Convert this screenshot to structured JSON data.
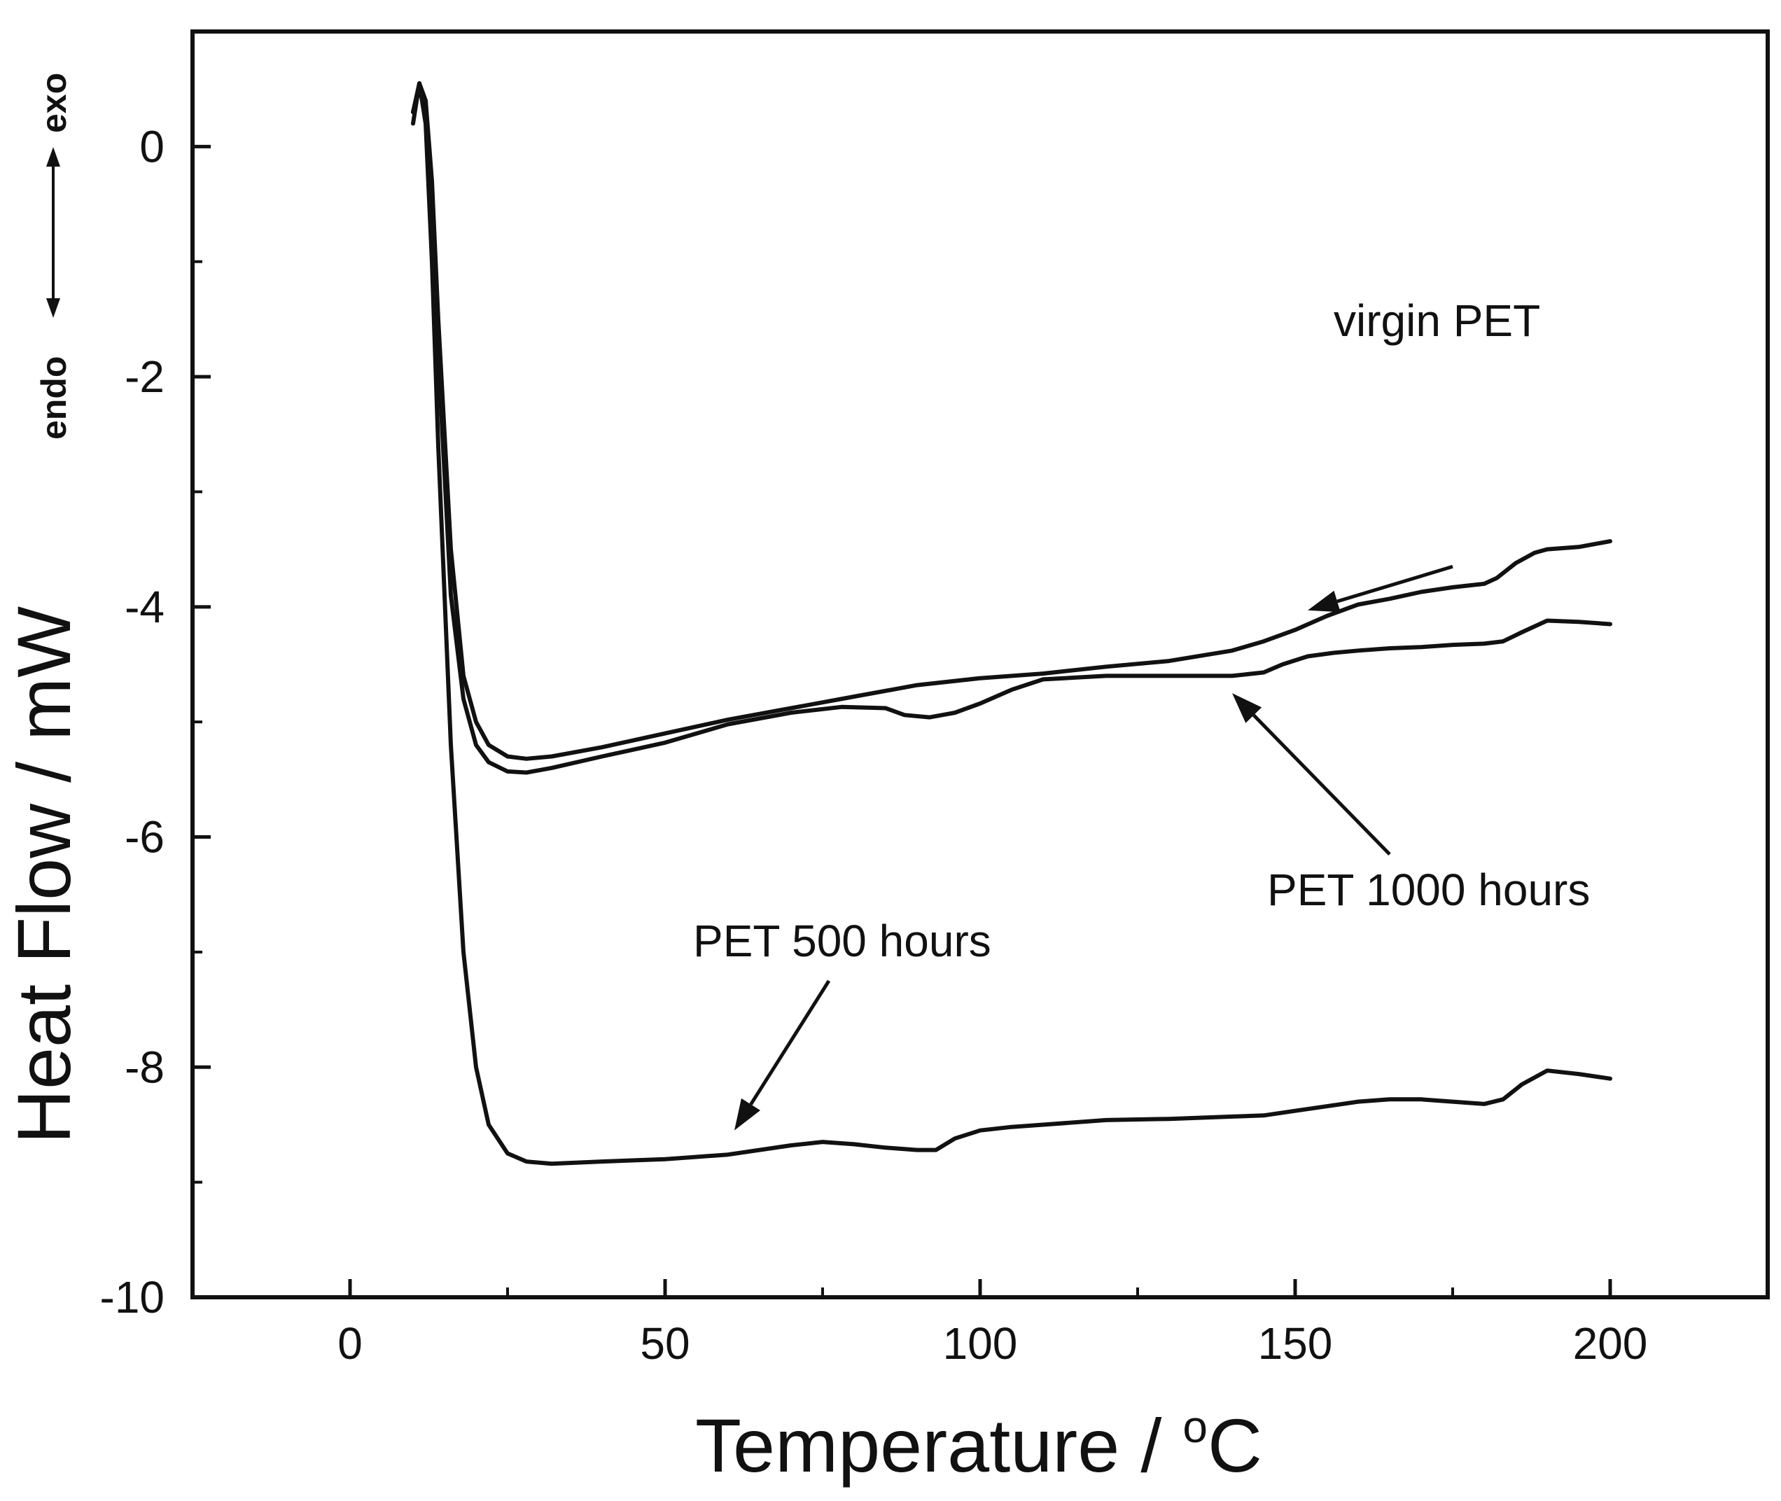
{
  "chart_data": {
    "type": "line",
    "title": "",
    "xlabel": "Temperature / ",
    "xlabel_sup": "o",
    "xlabel_tail": "C",
    "ylabel": "Heat Flow / mW",
    "xlim": [
      -25,
      225
    ],
    "ylim": [
      -10,
      1
    ],
    "xticks": [
      0,
      50,
      100,
      150,
      200
    ],
    "yticks": [
      0,
      -2,
      -4,
      -6,
      -8,
      -10
    ],
    "xticklabels": [
      "0",
      "50",
      "100",
      "150",
      "200"
    ],
    "yticklabels": [
      "0",
      "-2",
      "-4",
      "-6",
      "-8",
      "-10"
    ],
    "grid": false,
    "direction_indicator": {
      "exo": "exo",
      "endo": "endo"
    },
    "series": [
      {
        "name": "virgin PET",
        "x": [
          10,
          11,
          12,
          13,
          14,
          16,
          18,
          20,
          22,
          25,
          28,
          32,
          40,
          50,
          60,
          70,
          80,
          90,
          100,
          110,
          120,
          130,
          140,
          145,
          150,
          155,
          160,
          165,
          170,
          175,
          180,
          182,
          185,
          188,
          190,
          195,
          200
        ],
        "y": [
          0.3,
          0.55,
          0.4,
          -0.3,
          -1.5,
          -3.5,
          -4.6,
          -5.0,
          -5.2,
          -5.3,
          -5.32,
          -5.3,
          -5.22,
          -5.1,
          -4.98,
          -4.88,
          -4.78,
          -4.68,
          -4.62,
          -4.58,
          -4.52,
          -4.47,
          -4.38,
          -4.3,
          -4.2,
          -4.08,
          -3.98,
          -3.93,
          -3.87,
          -3.83,
          -3.8,
          -3.75,
          -3.62,
          -3.53,
          -3.5,
          -3.48,
          -3.43
        ]
      },
      {
        "name": "PET 1000 hours",
        "x": [
          10,
          11,
          12,
          13,
          14,
          16,
          18,
          20,
          22,
          25,
          28,
          32,
          40,
          50,
          60,
          70,
          78,
          85,
          88,
          92,
          96,
          100,
          105,
          110,
          120,
          130,
          140,
          145,
          148,
          152,
          156,
          160,
          165,
          170,
          175,
          180,
          183,
          186,
          190,
          195,
          200
        ],
        "y": [
          0.3,
          0.5,
          0.3,
          -0.5,
          -1.8,
          -3.9,
          -4.8,
          -5.2,
          -5.35,
          -5.43,
          -5.44,
          -5.4,
          -5.3,
          -5.18,
          -5.02,
          -4.92,
          -4.87,
          -4.88,
          -4.94,
          -4.96,
          -4.92,
          -4.84,
          -4.72,
          -4.63,
          -4.6,
          -4.6,
          -4.6,
          -4.57,
          -4.5,
          -4.43,
          -4.4,
          -4.38,
          -4.36,
          -4.35,
          -4.33,
          -4.32,
          -4.3,
          -4.22,
          -4.12,
          -4.13,
          -4.15
        ]
      },
      {
        "name": "PET 500 hours",
        "x": [
          10,
          11,
          12,
          13,
          14,
          16,
          18,
          20,
          22,
          25,
          28,
          32,
          40,
          50,
          60,
          70,
          75,
          80,
          85,
          90,
          93,
          96,
          100,
          105,
          110,
          120,
          130,
          140,
          145,
          150,
          155,
          160,
          165,
          170,
          175,
          180,
          183,
          186,
          190,
          195,
          200
        ],
        "y": [
          0.2,
          0.55,
          0.2,
          -1.0,
          -2.6,
          -5.2,
          -7.0,
          -8.0,
          -8.5,
          -8.75,
          -8.82,
          -8.84,
          -8.82,
          -8.8,
          -8.76,
          -8.68,
          -8.65,
          -8.67,
          -8.7,
          -8.72,
          -8.72,
          -8.62,
          -8.55,
          -8.52,
          -8.5,
          -8.46,
          -8.45,
          -8.43,
          -8.42,
          -8.38,
          -8.34,
          -8.3,
          -8.28,
          -8.28,
          -8.3,
          -8.32,
          -8.28,
          -8.15,
          -8.03,
          -8.06,
          -8.1
        ]
      }
    ],
    "annotations": [
      {
        "text": "virgin PET",
        "series": "virgin PET",
        "arrow_from": [
          175,
          -3.65
        ],
        "arrow_to": [
          152,
          -4.03
        ]
      },
      {
        "text": "PET 1000 hours",
        "series": "PET 1000 hours",
        "arrow_from": [
          165,
          -6.15
        ],
        "arrow_to": [
          140,
          -4.75
        ]
      },
      {
        "text": "PET 500 hours",
        "series": "PET 500 hours",
        "arrow_from": [
          76,
          -7.25
        ],
        "arrow_to": [
          61,
          -8.55
        ]
      }
    ]
  }
}
